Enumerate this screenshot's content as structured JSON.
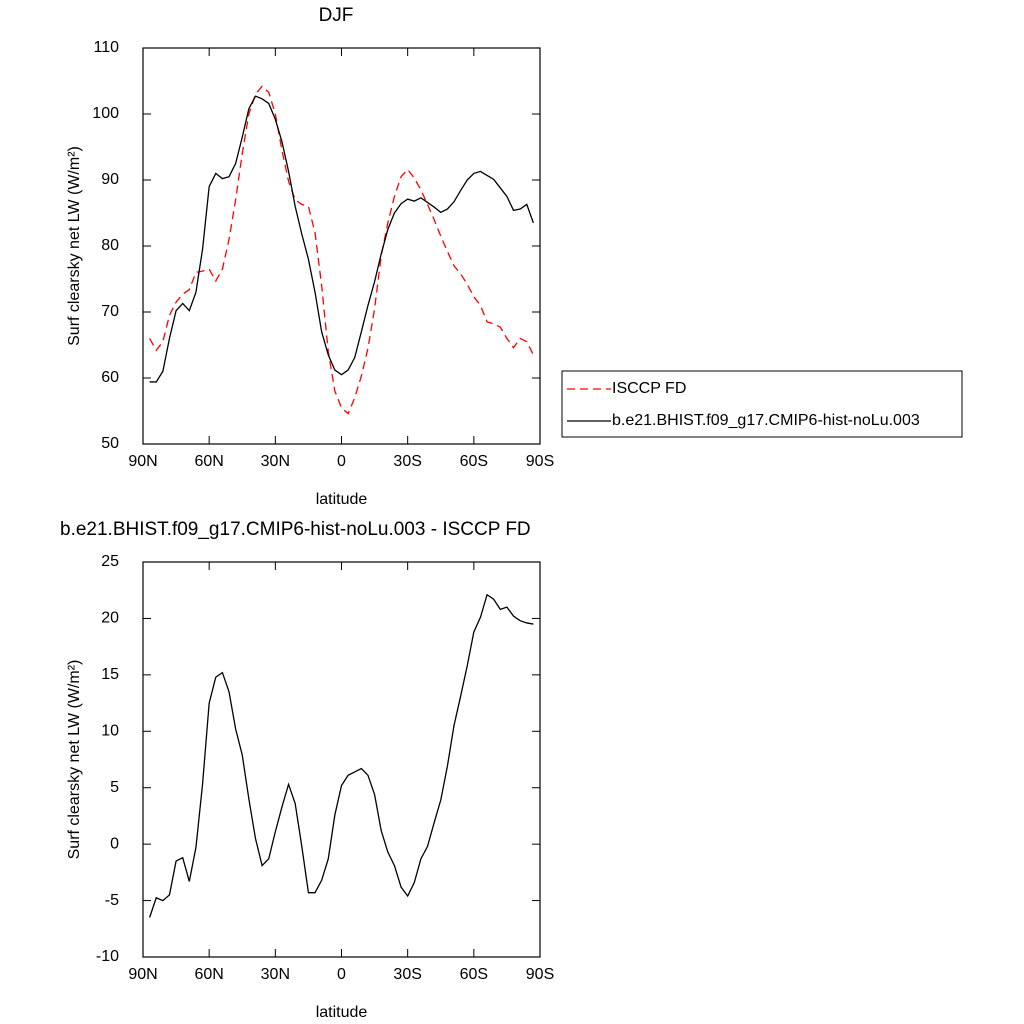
{
  "chart_data": [
    {
      "type": "line",
      "title": "DJF",
      "xlabel": "latitude",
      "ylabel": "Surf clearsky net LW (W/m²)",
      "xlim": [
        90,
        -90
      ],
      "ylim": [
        50,
        110
      ],
      "xticks": [
        {
          "value": 90,
          "label": "90N"
        },
        {
          "value": 60,
          "label": "60N"
        },
        {
          "value": 30,
          "label": "30N"
        },
        0,
        {
          "value": -30,
          "label": "30S"
        },
        {
          "value": -60,
          "label": "60S"
        },
        {
          "value": -90,
          "label": "90S"
        }
      ],
      "yticks": [
        50,
        60,
        70,
        80,
        90,
        100,
        110
      ],
      "legend": "right",
      "x": [
        87,
        84,
        81,
        78,
        75,
        72,
        69,
        66,
        63,
        60,
        57,
        54,
        51,
        48,
        45,
        42,
        39,
        36,
        33,
        30,
        27,
        24,
        21,
        18,
        15,
        12,
        9,
        6,
        3,
        0,
        -3,
        -6,
        -9,
        -12,
        -15,
        -18,
        -21,
        -24,
        -27,
        -30,
        -33,
        -36,
        -39,
        -42,
        -45,
        -48,
        -51,
        -54,
        -57,
        -60,
        -63,
        -66,
        -69,
        -72,
        -75,
        -78,
        -81,
        -84,
        -87
      ],
      "series": [
        {
          "name": "ISCCP FD",
          "color": "#ff0000",
          "style": "dashed",
          "values": [
            66,
            64.2,
            65.5,
            69.5,
            71.5,
            72.7,
            73.4,
            76,
            76.2,
            76.5,
            74.7,
            76.5,
            81,
            87,
            94,
            100,
            103,
            104.2,
            103.3,
            100,
            94.5,
            89.8,
            87,
            86.3,
            86,
            82,
            74,
            64,
            58,
            55.5,
            54.6,
            57,
            60.3,
            64.5,
            70.5,
            78.5,
            83.5,
            87.5,
            90.5,
            91.6,
            90.3,
            88.5,
            86.3,
            84,
            81.5,
            79.2,
            77,
            75.8,
            74.2,
            72.3,
            71,
            68.5,
            68.2,
            67.7,
            66,
            64.6,
            66,
            65.5,
            63.5
          ]
        },
        {
          "name": "b.e21.BHIST.f09_g17.CMIP6-hist-noLu.003",
          "color": "#000000",
          "style": "solid",
          "values": [
            59.4,
            59.4,
            61,
            66,
            70.2,
            71.3,
            70.2,
            73,
            79.5,
            89,
            91,
            90.2,
            90.5,
            92.5,
            96.5,
            100.8,
            102.7,
            102.3,
            101.6,
            99.2,
            95.8,
            91.3,
            86,
            81.8,
            78,
            73,
            67,
            63.5,
            61.2,
            60.5,
            61.2,
            63.1,
            67,
            71,
            74.6,
            78.8,
            82.5,
            85,
            86.4,
            87.1,
            86.8,
            87.3,
            86.6,
            85.9,
            85.1,
            85.6,
            86.7,
            88.4,
            90,
            91,
            91.3,
            90.7,
            90.1,
            88.8,
            87.5,
            85.4,
            85.6,
            86.3,
            83.5
          ]
        }
      ]
    },
    {
      "type": "line",
      "title": "b.e21.BHIST.f09_g17.CMIP6-hist-noLu.003 - ISCCP FD",
      "xlabel": "latitude",
      "ylabel": "Surf clearsky net LW (W/m²)",
      "xlim": [
        90,
        -90
      ],
      "ylim": [
        -10,
        25
      ],
      "xticks": [
        {
          "value": 90,
          "label": "90N"
        },
        {
          "value": 60,
          "label": "60N"
        },
        {
          "value": 30,
          "label": "30N"
        },
        0,
        {
          "value": -30,
          "label": "30S"
        },
        {
          "value": -60,
          "label": "60S"
        },
        {
          "value": -90,
          "label": "90S"
        }
      ],
      "yticks": [
        -10,
        -5,
        0,
        5,
        10,
        15,
        20,
        25
      ],
      "x": [
        87,
        84,
        81,
        78,
        75,
        72,
        69,
        66,
        63,
        60,
        57,
        54,
        51,
        48,
        45,
        42,
        39,
        36,
        33,
        30,
        27,
        24,
        21,
        18,
        15,
        12,
        9,
        6,
        3,
        0,
        -3,
        -6,
        -9,
        -12,
        -15,
        -18,
        -21,
        -24,
        -27,
        -30,
        -33,
        -36,
        -39,
        -42,
        -45,
        -48,
        -51,
        -54,
        -57,
        -60,
        -63,
        -66,
        -69,
        -72,
        -75,
        -78,
        -81,
        -84,
        -87
      ],
      "series": [
        {
          "color": "#000000",
          "style": "solid",
          "values": [
            -6.5,
            -4.75,
            -5,
            -4.5,
            -1.5,
            -1.2,
            -3.3,
            -0.3,
            5.3,
            12.5,
            14.8,
            15.2,
            13.5,
            10.2,
            7.9,
            4,
            0.5,
            -1.9,
            -1.3,
            1.1,
            3.3,
            5.3,
            3.6,
            -0.2,
            -4.3,
            -4.3,
            -3.2,
            -1.3,
            2.6,
            5.2,
            6.1,
            6.4,
            6.7,
            6.1,
            4.4,
            1.2,
            -0.7,
            -1.9,
            -3.8,
            -4.6,
            -3.4,
            -1.3,
            -0.2,
            1.9,
            3.9,
            6.9,
            10.5,
            13.1,
            15.8,
            18.8,
            20.1,
            22.1,
            21.7,
            20.8,
            21,
            20.2,
            19.8,
            19.6,
            19.5
          ]
        }
      ]
    }
  ]
}
